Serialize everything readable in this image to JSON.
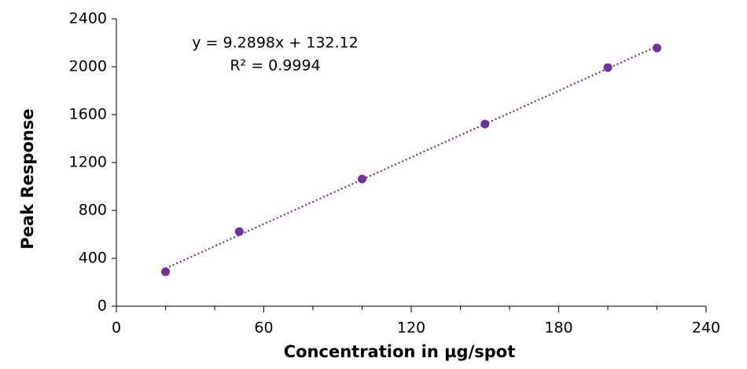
{
  "chart_data": {
    "type": "scatter",
    "xlabel": "Concentration in µg/spot",
    "ylabel": "Peak Response",
    "annotations": [
      "y = 9.2898x + 132.12",
      "R² = 0.9994"
    ],
    "x": [
      20,
      50,
      100,
      150,
      200,
      220
    ],
    "values": [
      288,
      623,
      1062,
      1521,
      1993,
      2157
    ],
    "color": "#7030a0",
    "trendline": true,
    "xlim": [
      0,
      240
    ],
    "xticks": [
      0,
      60,
      120,
      180,
      240
    ],
    "xminorticks": [
      20,
      40,
      80,
      100,
      140,
      160,
      200,
      220
    ],
    "ylim": [
      0,
      2400
    ],
    "yticks": [
      0,
      400,
      800,
      1200,
      1600,
      2000,
      2400
    ],
    "grid": false
  }
}
